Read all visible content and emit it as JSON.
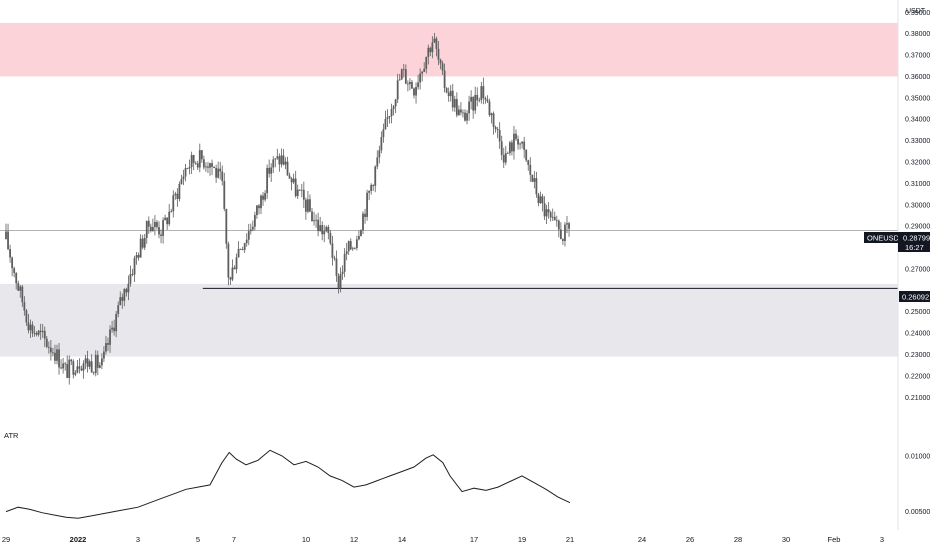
{
  "chart_data": [
    {
      "type": "candlestick",
      "symbol_tag": "ONEUSDT",
      "currency": "USDT",
      "last_price": "0.28799",
      "countdown": "16:27",
      "level_line": 0.26092,
      "level_label": "0.26092",
      "ylim": [
        0.205,
        0.392
      ],
      "y_ticks": [
        0.21,
        0.22,
        0.23,
        0.24,
        0.25,
        0.27,
        0.28,
        0.29,
        0.3,
        0.31,
        0.32,
        0.33,
        0.34,
        0.35,
        0.36,
        0.37,
        0.38,
        0.39
      ],
      "y_tick_labels": [
        "0.21000",
        "0.22000",
        "0.23000",
        "0.24000",
        "0.25000",
        "0.27000",
        "0.28000",
        "0.29000",
        "0.30000",
        "0.31000",
        "0.32000",
        "0.33000",
        "0.34000",
        "0.35000",
        "0.36000",
        "0.37000",
        "0.38000",
        "0.39000"
      ],
      "zones": [
        {
          "name": "resistance",
          "from": 0.36,
          "to": 0.385,
          "color": "#fbd3d8"
        },
        {
          "name": "support",
          "from": 0.229,
          "to": 0.263,
          "color": "#e8e8ec"
        }
      ],
      "x_ticks": [
        {
          "t": 0.0,
          "label": "29"
        },
        {
          "t": 3.0,
          "label": "2022",
          "bold": true
        },
        {
          "t": 5.5,
          "label": "3"
        },
        {
          "t": 9.5,
          "label": "7"
        },
        {
          "t": 12.5,
          "label": "10"
        },
        {
          "t": 14.5,
          "label": "12"
        },
        {
          "t": 16.5,
          "label": "14"
        },
        {
          "t": 19.5,
          "label": "17"
        },
        {
          "t": 21.5,
          "label": "19"
        },
        {
          "t": 23.5,
          "label": "21"
        },
        {
          "t": 26.5,
          "label": "24"
        },
        {
          "t": 28.5,
          "label": "26"
        },
        {
          "t": 30.5,
          "label": "28"
        },
        {
          "t": 32.5,
          "label": "30"
        },
        {
          "t": 34.5,
          "label": "Feb",
          "bold": false
        },
        {
          "t": 36.5,
          "label": "3"
        }
      ],
      "x_tick_labels_extra": [
        {
          "t": 8.0,
          "label": "5"
        }
      ],
      "price_path": [
        [
          0.0,
          0.284
        ],
        [
          0.5,
          0.262
        ],
        [
          1.0,
          0.243
        ],
        [
          1.5,
          0.238
        ],
        [
          2.0,
          0.232
        ],
        [
          2.5,
          0.222
        ],
        [
          3.0,
          0.227
        ],
        [
          3.5,
          0.226
        ],
        [
          4.0,
          0.225
        ],
        [
          4.5,
          0.245
        ],
        [
          5.0,
          0.262
        ],
        [
          5.5,
          0.278
        ],
        [
          6.0,
          0.292
        ],
        [
          6.5,
          0.288
        ],
        [
          7.0,
          0.302
        ],
        [
          7.5,
          0.318
        ],
        [
          8.0,
          0.322
        ],
        [
          8.5,
          0.32
        ],
        [
          9.0,
          0.31
        ],
        [
          9.3,
          0.262
        ],
        [
          9.6,
          0.278
        ],
        [
          10.0,
          0.285
        ],
        [
          10.5,
          0.298
        ],
        [
          11.0,
          0.318
        ],
        [
          11.5,
          0.322
        ],
        [
          12.0,
          0.308
        ],
        [
          12.5,
          0.3
        ],
        [
          13.0,
          0.29
        ],
        [
          13.5,
          0.285
        ],
        [
          13.8,
          0.262
        ],
        [
          14.2,
          0.278
        ],
        [
          14.5,
          0.282
        ],
        [
          15.0,
          0.3
        ],
        [
          15.5,
          0.322
        ],
        [
          16.0,
          0.345
        ],
        [
          16.5,
          0.362
        ],
        [
          17.0,
          0.355
        ],
        [
          17.5,
          0.37
        ],
        [
          17.8,
          0.378
        ],
        [
          18.2,
          0.358
        ],
        [
          18.5,
          0.352
        ],
        [
          19.0,
          0.34
        ],
        [
          19.5,
          0.348
        ],
        [
          19.8,
          0.355
        ],
        [
          20.3,
          0.34
        ],
        [
          20.8,
          0.322
        ],
        [
          21.3,
          0.333
        ],
        [
          21.8,
          0.316
        ],
        [
          22.3,
          0.3
        ],
        [
          22.8,
          0.29
        ],
        [
          23.2,
          0.286
        ],
        [
          23.5,
          0.288
        ]
      ]
    },
    {
      "type": "line",
      "name": "ATR",
      "y_tick_labels": [
        "0.01000",
        "0.00500"
      ],
      "y_ticks": [
        0.01,
        0.005
      ],
      "ylim": [
        0.0038,
        0.0125
      ],
      "x": [
        0.0,
        0.5,
        1.0,
        1.5,
        2.0,
        2.5,
        3.0,
        3.5,
        4.0,
        4.5,
        5.0,
        5.5,
        6.0,
        6.5,
        7.0,
        7.5,
        8.0,
        8.5,
        9.0,
        9.3,
        9.6,
        10.0,
        10.5,
        11.0,
        11.5,
        12.0,
        12.5,
        13.0,
        13.5,
        14.0,
        14.5,
        15.0,
        15.5,
        16.0,
        16.5,
        17.0,
        17.5,
        17.8,
        18.2,
        18.5,
        19.0,
        19.5,
        20.0,
        20.5,
        21.0,
        21.5,
        22.0,
        22.5,
        23.0,
        23.5
      ],
      "values": [
        0.005,
        0.0054,
        0.0052,
        0.0049,
        0.0047,
        0.0045,
        0.0044,
        0.0046,
        0.0048,
        0.005,
        0.0052,
        0.0054,
        0.0058,
        0.0062,
        0.0066,
        0.007,
        0.0072,
        0.0074,
        0.0094,
        0.0103,
        0.0097,
        0.0092,
        0.0096,
        0.0105,
        0.01,
        0.0092,
        0.0095,
        0.009,
        0.0082,
        0.0078,
        0.0072,
        0.0074,
        0.0078,
        0.0082,
        0.0086,
        0.009,
        0.0098,
        0.0101,
        0.0094,
        0.0082,
        0.0068,
        0.0071,
        0.0069,
        0.0072,
        0.0077,
        0.0082,
        0.0076,
        0.007,
        0.0063,
        0.0058
      ]
    }
  ]
}
